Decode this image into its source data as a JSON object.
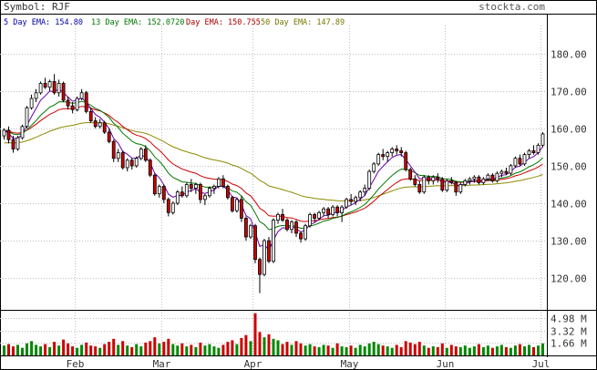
{
  "header": {
    "symbol_label": "Symbol: RJF",
    "site": "stockta.com"
  },
  "legend": [
    {
      "text": "5 Day EMA: 154.80",
      "color": "#0000aa"
    },
    {
      "text": "13 Day EMA: 152.0720",
      "color": "#007700"
    },
    {
      "text": "Day EMA: 150.755",
      "color": "#aa0000"
    },
    {
      "text": "50 Day EMA: 147.89",
      "color": "#777700"
    }
  ],
  "colors": {
    "up_candle": "#ffffff",
    "down_candle": "#cc0000",
    "wick": "#000000",
    "grid": "#c0c0c0",
    "vol_up": "#008800",
    "vol_down": "#cc0000",
    "ema5": "#6b00a8",
    "ema13": "#007700",
    "ema_red": "#cc0000",
    "ema50": "#8a8a00"
  },
  "chart_data": {
    "type": "candlestick",
    "x_tick_labels": [
      "Feb",
      "Mar",
      "Apr",
      "May",
      "Jun",
      "Jul"
    ],
    "y_tick_labels": [
      "180.00",
      "170.00",
      "160.00",
      "150.00",
      "140.00",
      "130.00",
      "120.00"
    ],
    "y_ticks": [
      180,
      170,
      160,
      150,
      140,
      130,
      120
    ],
    "ylim": [
      113,
      186
    ],
    "volume_tick_labels": [
      "4.98 M",
      "3.32 M",
      "1.66 M"
    ],
    "volume_ticks": [
      4.98,
      3.32,
      1.66
    ],
    "volume_max": 5.8,
    "month_start_index": [
      16,
      35,
      55,
      76,
      97,
      118
    ],
    "ohlc": [
      [
        158.0,
        160.0,
        157.0,
        159.5
      ],
      [
        159.5,
        160.5,
        156.0,
        157.0
      ],
      [
        157.0,
        158.0,
        153.5,
        154.5
      ],
      [
        154.5,
        158.0,
        154.0,
        157.5
      ],
      [
        157.5,
        161.0,
        157.0,
        160.5
      ],
      [
        160.5,
        166.0,
        160.0,
        165.5
      ],
      [
        165.5,
        169.0,
        165.0,
        168.0
      ],
      [
        168.0,
        170.5,
        167.0,
        169.5
      ],
      [
        169.5,
        172.5,
        169.0,
        172.0
      ],
      [
        172.0,
        173.5,
        170.5,
        171.0
      ],
      [
        171.0,
        173.0,
        170.0,
        172.5
      ],
      [
        172.5,
        174.5,
        169.0,
        169.5
      ],
      [
        169.5,
        173.0,
        168.5,
        172.0
      ],
      [
        172.0,
        172.5,
        167.0,
        167.5
      ],
      [
        167.5,
        168.5,
        165.0,
        166.0
      ],
      [
        166.0,
        167.0,
        164.0,
        165.0
      ],
      [
        165.0,
        168.5,
        164.5,
        168.0
      ],
      [
        168.0,
        170.5,
        167.5,
        169.5
      ],
      [
        169.5,
        170.0,
        164.0,
        164.5
      ],
      [
        164.5,
        165.5,
        161.5,
        162.0
      ],
      [
        162.0,
        163.0,
        160.0,
        160.5
      ],
      [
        160.5,
        162.5,
        160.0,
        161.5
      ],
      [
        161.5,
        162.0,
        158.5,
        159.0
      ],
      [
        159.0,
        160.0,
        156.0,
        156.5
      ],
      [
        156.5,
        157.0,
        151.0,
        152.0
      ],
      [
        152.0,
        154.5,
        151.0,
        153.5
      ],
      [
        153.5,
        154.0,
        149.0,
        149.5
      ],
      [
        149.5,
        152.0,
        148.5,
        151.5
      ],
      [
        151.5,
        152.0,
        149.0,
        150.0
      ],
      [
        150.0,
        152.5,
        149.5,
        152.0
      ],
      [
        152.0,
        155.0,
        151.5,
        154.5
      ],
      [
        154.5,
        155.5,
        151.0,
        151.5
      ],
      [
        151.5,
        152.0,
        147.0,
        147.5
      ],
      [
        147.5,
        148.0,
        142.0,
        142.5
      ],
      [
        142.5,
        145.0,
        141.5,
        144.5
      ],
      [
        144.5,
        145.0,
        140.0,
        141.0
      ],
      [
        141.0,
        141.5,
        136.5,
        137.5
      ],
      [
        137.5,
        140.5,
        137.0,
        140.0
      ],
      [
        140.0,
        143.5,
        139.5,
        143.0
      ],
      [
        143.0,
        144.5,
        141.5,
        142.0
      ],
      [
        142.0,
        145.5,
        141.5,
        145.0
      ],
      [
        145.0,
        146.5,
        143.0,
        144.0
      ],
      [
        144.0,
        145.5,
        142.5,
        145.0
      ],
      [
        145.0,
        145.5,
        140.0,
        141.0
      ],
      [
        141.0,
        142.5,
        139.5,
        142.0
      ],
      [
        142.0,
        144.5,
        141.5,
        144.0
      ],
      [
        144.0,
        145.0,
        142.5,
        144.5
      ],
      [
        144.5,
        147.0,
        144.0,
        146.5
      ],
      [
        146.5,
        147.5,
        144.0,
        144.5
      ],
      [
        144.5,
        145.0,
        141.0,
        141.5
      ],
      [
        141.5,
        142.0,
        137.5,
        138.0
      ],
      [
        138.0,
        141.5,
        137.5,
        141.0
      ],
      [
        141.0,
        142.0,
        135.0,
        136.0
      ],
      [
        136.0,
        136.5,
        130.0,
        131.0
      ],
      [
        131.0,
        134.5,
        130.5,
        134.0
      ],
      [
        134.0,
        134.5,
        124.0,
        125.0
      ],
      [
        125.0,
        125.5,
        116.0,
        121.0
      ],
      [
        121.0,
        130.5,
        120.5,
        130.0
      ],
      [
        130.0,
        131.0,
        124.0,
        124.5
      ],
      [
        124.5,
        136.0,
        124.0,
        135.5
      ],
      [
        135.5,
        137.5,
        134.5,
        137.0
      ],
      [
        137.0,
        138.5,
        135.0,
        135.5
      ],
      [
        135.5,
        136.0,
        132.5,
        133.0
      ],
      [
        133.0,
        135.5,
        132.0,
        135.0
      ],
      [
        135.0,
        135.5,
        131.0,
        132.0
      ],
      [
        132.0,
        132.5,
        129.5,
        130.5
      ],
      [
        130.5,
        134.5,
        130.0,
        134.0
      ],
      [
        134.0,
        137.5,
        133.5,
        137.0
      ],
      [
        137.0,
        137.5,
        135.0,
        136.0
      ],
      [
        136.0,
        138.0,
        135.5,
        137.5
      ],
      [
        137.5,
        139.0,
        136.5,
        138.5
      ],
      [
        138.5,
        139.0,
        136.0,
        137.0
      ],
      [
        137.0,
        139.5,
        136.5,
        139.0
      ],
      [
        139.0,
        139.5,
        136.5,
        137.5
      ],
      [
        137.5,
        139.5,
        135.0,
        139.0
      ],
      [
        139.0,
        141.5,
        138.5,
        141.0
      ],
      [
        141.0,
        142.5,
        139.5,
        140.5
      ],
      [
        140.5,
        142.0,
        139.5,
        141.5
      ],
      [
        141.5,
        143.5,
        140.5,
        143.0
      ],
      [
        143.0,
        145.0,
        142.0,
        144.0
      ],
      [
        144.0,
        149.0,
        143.5,
        148.5
      ],
      [
        148.5,
        151.0,
        148.0,
        150.5
      ],
      [
        150.5,
        153.5,
        150.0,
        153.0
      ],
      [
        153.0,
        154.5,
        151.5,
        152.5
      ],
      [
        152.5,
        154.0,
        151.0,
        153.5
      ],
      [
        153.5,
        155.0,
        152.5,
        154.5
      ],
      [
        154.5,
        155.5,
        153.0,
        154.0
      ],
      [
        154.0,
        155.0,
        152.5,
        153.5
      ],
      [
        153.5,
        154.0,
        148.5,
        149.0
      ],
      [
        149.0,
        149.5,
        146.0,
        146.5
      ],
      [
        146.5,
        147.5,
        144.5,
        145.0
      ],
      [
        145.0,
        146.0,
        142.5,
        143.0
      ],
      [
        143.0,
        147.5,
        142.5,
        147.0
      ],
      [
        147.0,
        147.5,
        145.0,
        146.0
      ],
      [
        146.0,
        147.5,
        145.0,
        147.0
      ],
      [
        147.0,
        148.0,
        145.5,
        146.5
      ],
      [
        146.5,
        147.0,
        143.0,
        143.5
      ],
      [
        143.5,
        146.5,
        143.0,
        146.0
      ],
      [
        146.0,
        147.0,
        145.0,
        145.5
      ],
      [
        145.5,
        146.0,
        142.0,
        143.0
      ],
      [
        143.0,
        145.5,
        142.5,
        145.0
      ],
      [
        145.0,
        146.5,
        144.5,
        146.0
      ],
      [
        146.0,
        147.0,
        145.0,
        146.5
      ],
      [
        146.5,
        147.5,
        145.5,
        147.0
      ],
      [
        147.0,
        147.5,
        145.0,
        145.5
      ],
      [
        145.5,
        147.0,
        145.0,
        146.5
      ],
      [
        146.5,
        148.0,
        146.0,
        147.5
      ],
      [
        147.5,
        148.0,
        145.5,
        146.0
      ],
      [
        146.0,
        148.5,
        145.5,
        148.0
      ],
      [
        148.0,
        149.0,
        147.0,
        148.5
      ],
      [
        148.5,
        149.5,
        147.5,
        148.0
      ],
      [
        148.0,
        150.5,
        147.5,
        150.0
      ],
      [
        150.0,
        152.5,
        149.5,
        152.0
      ],
      [
        152.0,
        153.0,
        150.0,
        150.5
      ],
      [
        150.5,
        153.5,
        150.0,
        153.0
      ],
      [
        153.0,
        154.5,
        152.0,
        154.0
      ],
      [
        154.0,
        155.5,
        153.0,
        153.5
      ],
      [
        153.5,
        156.0,
        153.0,
        155.5
      ],
      [
        155.5,
        159.0,
        155.0,
        158.5
      ]
    ],
    "volume": [
      1.3,
      1.5,
      1.2,
      1.4,
      1.0,
      1.6,
      1.9,
      1.4,
      1.2,
      1.5,
      1.1,
      1.8,
      1.3,
      2.1,
      1.6,
      1.2,
      1.0,
      1.4,
      1.7,
      1.3,
      1.2,
      1.0,
      1.5,
      1.8,
      2.2,
      1.4,
      1.9,
      1.3,
      1.1,
      1.5,
      1.2,
      1.7,
      1.9,
      2.4,
      1.6,
      1.8,
      2.2,
      1.5,
      1.3,
      1.6,
      1.2,
      1.4,
      1.1,
      1.7,
      1.3,
      1.5,
      1.2,
      1.0,
      1.4,
      1.8,
      2.0,
      1.5,
      2.3,
      2.7,
      1.9,
      5.6,
      3.1,
      2.4,
      2.8,
      2.2,
      2.0,
      1.5,
      1.8,
      1.4,
      1.9,
      1.6,
      1.3,
      1.5,
      1.2,
      1.1,
      1.4,
      1.3,
      1.0,
      1.6,
      1.2,
      1.1,
      1.3,
      1.0,
      1.4,
      1.2,
      1.6,
      1.8,
      1.5,
      1.3,
      1.2,
      1.0,
      1.4,
      1.1,
      1.9,
      1.7,
      1.5,
      1.8,
      1.3,
      1.0,
      1.2,
      1.1,
      1.6,
      1.0,
      1.4,
      1.2,
      1.1,
      1.3,
      1.0,
      1.2,
      1.5,
      1.1,
      1.3,
      1.0,
      1.2,
      1.4,
      1.1,
      1.0,
      1.3,
      1.5,
      1.2,
      1.4,
      1.1,
      1.3,
      1.6
    ]
  }
}
